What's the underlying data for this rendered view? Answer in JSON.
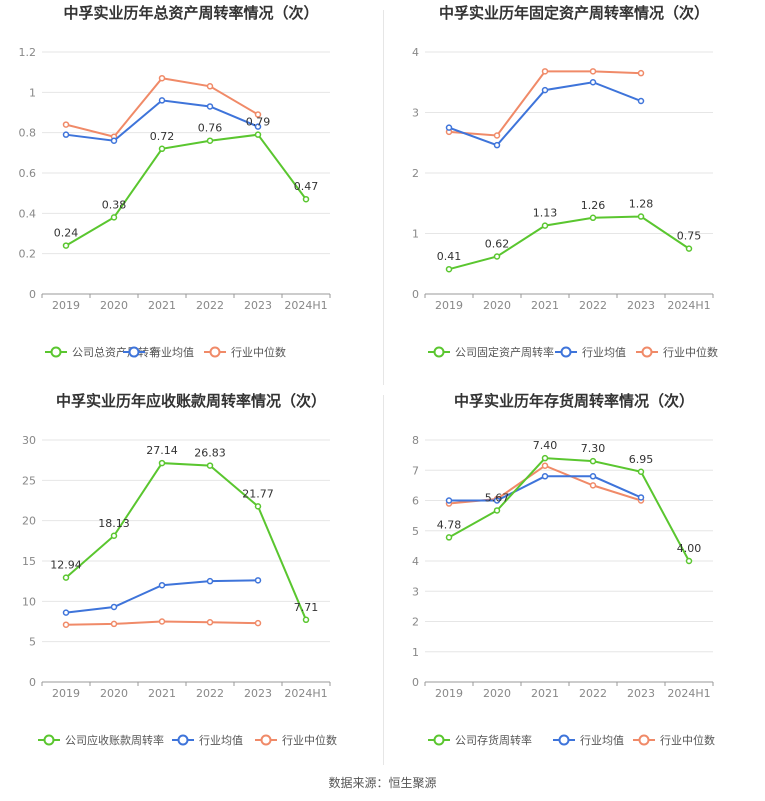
{
  "source_text": "数据来源：恒生聚源",
  "colors": {
    "company": "#5ac62f",
    "industry_avg": "#3e74da",
    "industry_median": "#f08a68",
    "axis_text": "#888888",
    "grid": "#e6e6e6"
  },
  "chart_data": [
    {
      "type": "line",
      "title": "中孚实业历年总资产周转率情况（次）",
      "categories": [
        "2019",
        "2020",
        "2021",
        "2022",
        "2023",
        "2024H1"
      ],
      "yticks": [
        "0",
        "0.2",
        "0.4",
        "0.6",
        "0.8",
        "1",
        "1.2"
      ],
      "ylim": [
        0,
        1.2
      ],
      "series": [
        {
          "name": "公司总资产周转率",
          "values": [
            0.24,
            0.38,
            0.72,
            0.76,
            0.79,
            0.47
          ],
          "labels": [
            "0.24",
            "0.38",
            "0.72",
            "0.76",
            "0.79",
            "0.47"
          ]
        },
        {
          "name": "行业均值",
          "values": [
            0.79,
            0.76,
            0.96,
            0.93,
            0.83,
            null
          ]
        },
        {
          "name": "行业中位数",
          "values": [
            0.84,
            0.78,
            1.07,
            1.03,
            0.89,
            null
          ]
        }
      ]
    },
    {
      "type": "line",
      "title": "中孚实业历年固定资产周转率情况（次）",
      "categories": [
        "2019",
        "2020",
        "2021",
        "2022",
        "2023",
        "2024H1"
      ],
      "yticks": [
        "0",
        "1",
        "2",
        "3",
        "4"
      ],
      "ylim": [
        0,
        4
      ],
      "series": [
        {
          "name": "公司固定资产周转率",
          "values": [
            0.41,
            0.62,
            1.13,
            1.26,
            1.28,
            0.75
          ],
          "labels": [
            "0.41",
            "0.62",
            "1.13",
            "1.26",
            "1.28",
            "0.75"
          ]
        },
        {
          "name": "行业均值",
          "values": [
            2.75,
            2.46,
            3.37,
            3.5,
            3.19,
            null
          ]
        },
        {
          "name": "行业中位数",
          "values": [
            2.68,
            2.62,
            3.68,
            3.68,
            3.65,
            null
          ]
        }
      ]
    },
    {
      "type": "line",
      "title": "中孚实业历年应收账款周转率情况（次）",
      "categories": [
        "2019",
        "2020",
        "2021",
        "2022",
        "2023",
        "2024H1"
      ],
      "yticks": [
        "0",
        "5",
        "10",
        "15",
        "20",
        "25",
        "30"
      ],
      "ylim": [
        0,
        30
      ],
      "series": [
        {
          "name": "公司应收账款周转率",
          "values": [
            12.94,
            18.13,
            27.14,
            26.83,
            21.77,
            7.71
          ],
          "labels": [
            "12.94",
            "18.13",
            "27.14",
            "26.83",
            "21.77",
            "7.71"
          ]
        },
        {
          "name": "行业均值",
          "values": [
            8.6,
            9.3,
            12.0,
            12.5,
            12.6,
            null
          ]
        },
        {
          "name": "行业中位数",
          "values": [
            7.1,
            7.2,
            7.5,
            7.4,
            7.3,
            null
          ]
        }
      ]
    },
    {
      "type": "line",
      "title": "中孚实业历年存货周转率情况（次）",
      "categories": [
        "2019",
        "2020",
        "2021",
        "2022",
        "2023",
        "2024H1"
      ],
      "yticks": [
        "0",
        "1",
        "2",
        "3",
        "4",
        "5",
        "6",
        "7",
        "8"
      ],
      "ylim": [
        0,
        8
      ],
      "series": [
        {
          "name": "公司存货周转率",
          "values": [
            4.78,
            5.67,
            7.4,
            7.3,
            6.95,
            4.0
          ],
          "labels": [
            "4.78",
            "5.67",
            "7.40",
            "7.30",
            "6.95",
            "4.00"
          ]
        },
        {
          "name": "行业均值",
          "values": [
            6.0,
            6.0,
            6.8,
            6.8,
            6.1,
            null
          ]
        },
        {
          "name": "行业中位数",
          "values": [
            5.9,
            6.05,
            7.15,
            6.5,
            6.0,
            null
          ]
        }
      ]
    }
  ]
}
